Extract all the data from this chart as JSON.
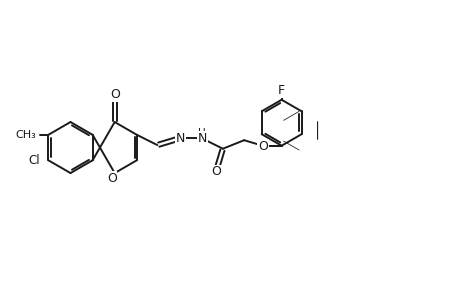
{
  "background_color": "#ffffff",
  "line_color": "#1a1a1a",
  "line_width": 1.4,
  "fig_width": 4.6,
  "fig_height": 3.0,
  "dpi": 100,
  "font_size": 8.5,
  "xlim": [
    0,
    46
  ],
  "ylim": [
    0,
    30
  ]
}
